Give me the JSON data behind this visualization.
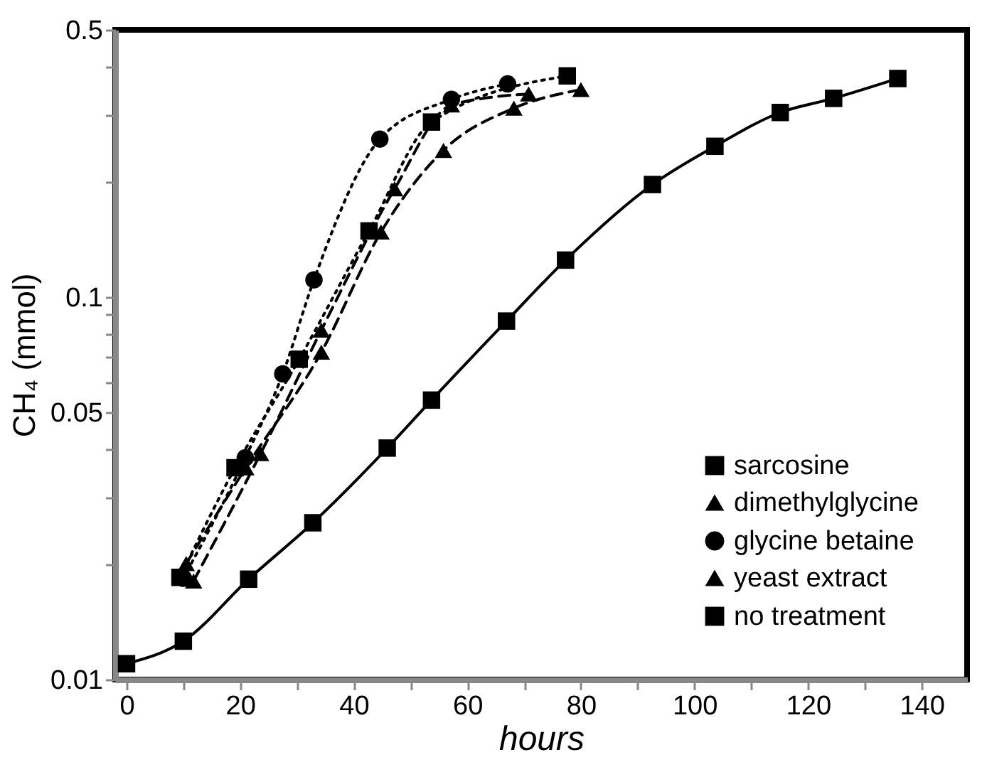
{
  "chart_data": {
    "type": "line",
    "xlabel": "hours",
    "ylabel": "CH₄ (mmol)",
    "log": "y",
    "xlim": [
      -2,
      148
    ],
    "ylim": [
      0.01,
      0.5
    ],
    "xticks": [
      0,
      {
        "value": 10,
        "label": null
      },
      20,
      {
        "value": 30,
        "label": null
      },
      40,
      {
        "value": 50,
        "label": null
      },
      60,
      {
        "value": 70,
        "label": null
      },
      80,
      {
        "value": 90,
        "label": null
      },
      100,
      {
        "value": 110,
        "label": null
      },
      120,
      {
        "value": 130,
        "label": null
      },
      140
    ],
    "yticks": [
      0.01,
      {
        "value": 0.02,
        "label": null
      },
      {
        "value": 0.03,
        "label": null
      },
      {
        "value": 0.04,
        "label": null
      },
      0.05,
      {
        "value": 0.06,
        "label": null
      },
      {
        "value": 0.07,
        "label": null
      },
      {
        "value": 0.08,
        "label": null
      },
      {
        "value": 0.09,
        "label": null
      },
      0.1,
      {
        "value": 0.2,
        "label": null
      },
      {
        "value": 0.3,
        "label": null
      },
      {
        "value": 0.4,
        "label": null
      },
      0.5
    ],
    "grid": false,
    "legend": "bottom right",
    "series": [
      {
        "name": "sarcosine",
        "color": "#000000",
        "marker": "square",
        "line_style": "dotted",
        "x": [
          9.4,
          19.1,
          30.4,
          42.7,
          53.7,
          77.6
        ],
        "values": [
          0.0185,
          0.0358,
          0.0688,
          0.149,
          0.287,
          0.379
        ]
      },
      {
        "name": "dimethylglycine",
        "color": "#000000",
        "marker": "triangle",
        "line_style": "dashed",
        "x": [
          11.8,
          23.6,
          34.3,
          47.2,
          57.2,
          70.8
        ],
        "values": [
          0.0181,
          0.039,
          0.082,
          0.192,
          0.318,
          0.34
        ]
      },
      {
        "name": "glycine betaine",
        "color": "#000000",
        "marker": "circle",
        "line_style": "dotted",
        "x": [
          10,
          20.9,
          27.5,
          33,
          44.6,
          57.2,
          67.1
        ],
        "values": [
          0.0184,
          0.038,
          0.063,
          0.111,
          0.259,
          0.329,
          0.361
        ]
      },
      {
        "name": "yeast extract",
        "color": "#000000",
        "marker": "triangle",
        "line_style": "dashed",
        "x": [
          10.5,
          21,
          34.3,
          44.8,
          55.8,
          68.2,
          80
        ],
        "values": [
          0.0201,
          0.0358,
          0.0718,
          0.148,
          0.242,
          0.312,
          0.349
        ]
      },
      {
        "name": "no treatment",
        "color": "#000000",
        "marker": "square",
        "line_style": "solid",
        "x": [
          0,
          10,
          21.5,
          32.8,
          45.9,
          53.7,
          66.9,
          77.3,
          92.6,
          103.6,
          115.1,
          124.5,
          135.8
        ],
        "values": [
          0.011,
          0.0126,
          0.0183,
          0.0257,
          0.0403,
          0.0538,
          0.0866,
          0.125,
          0.197,
          0.248,
          0.304,
          0.331,
          0.373
        ]
      }
    ]
  }
}
